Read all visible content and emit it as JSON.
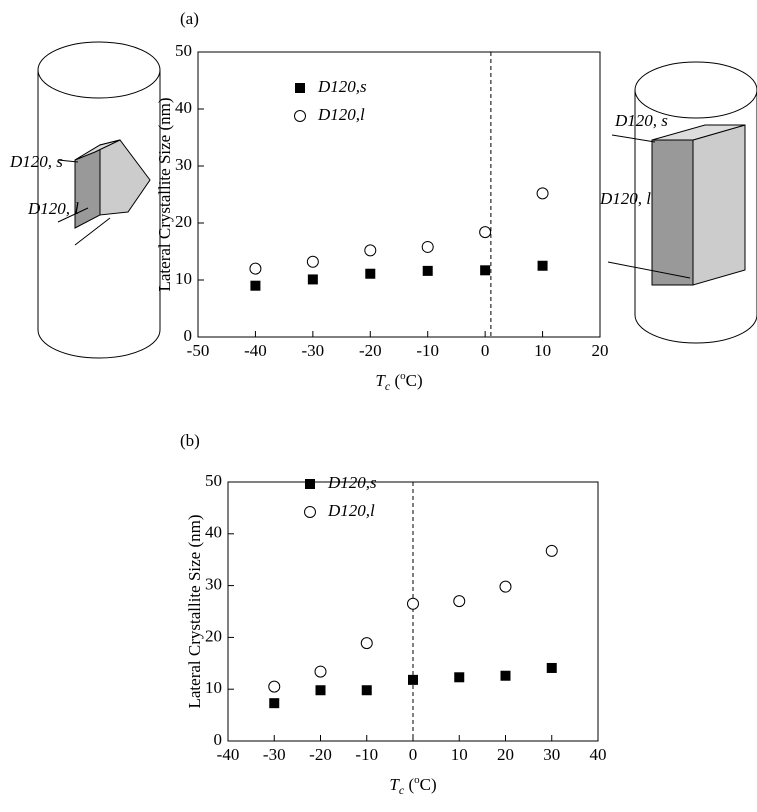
{
  "chart_data": [
    {
      "type": "scatter",
      "panel": "(a)",
      "y_label": "Lateral Crystallite Size (nm)",
      "x_label": [
        "T",
        "c",
        " (",
        "o",
        "C)"
      ],
      "xlim": [
        -50,
        20
      ],
      "xticks": [
        -50,
        -40,
        -30,
        -20,
        -10,
        0,
        10,
        20
      ],
      "ylim": [
        0,
        50
      ],
      "yticks": [
        0,
        10,
        20,
        30,
        40,
        50
      ],
      "vline": 1,
      "series": [
        {
          "name": "D120,s",
          "color": "#000000",
          "marker": "square",
          "x": [
            -40,
            -30,
            -20,
            -10,
            0,
            10
          ],
          "values": [
            9.0,
            10.1,
            11.1,
            11.6,
            11.7,
            12.5
          ]
        },
        {
          "name": "D120,l",
          "color": "#000000",
          "marker": "open-circle",
          "x": [
            -40,
            -30,
            -20,
            -10,
            0,
            10
          ],
          "values": [
            12.0,
            13.2,
            15.2,
            15.8,
            18.4,
            25.2
          ]
        }
      ]
    },
    {
      "type": "scatter",
      "panel": "(b)",
      "y_label": "Lateral Crystallite Size (nm)",
      "x_label": [
        "T",
        "c",
        " (",
        "o",
        "C)"
      ],
      "xlim": [
        -40,
        40
      ],
      "xticks": [
        -40,
        -30,
        -20,
        -10,
        0,
        10,
        20,
        30,
        40
      ],
      "ylim": [
        0,
        50
      ],
      "yticks": [
        0,
        10,
        20,
        30,
        40,
        50
      ],
      "vline": 0,
      "series": [
        {
          "name": "D120,s",
          "color": "#000000",
          "marker": "square",
          "x": [
            -30,
            -20,
            -10,
            0,
            10,
            20,
            30
          ],
          "values": [
            7.3,
            9.8,
            9.8,
            11.8,
            12.3,
            12.6,
            14.1
          ]
        },
        {
          "name": "D120,l",
          "color": "#000000",
          "marker": "open-circle",
          "x": [
            -30,
            -20,
            -10,
            0,
            10,
            20,
            30
          ],
          "values": [
            10.5,
            13.4,
            18.9,
            26.5,
            27.0,
            29.8,
            36.7
          ]
        }
      ]
    }
  ],
  "diagrams": {
    "left": [
      "D120, s",
      "D120, l"
    ],
    "right": [
      "D120, s",
      "D120, l"
    ]
  }
}
